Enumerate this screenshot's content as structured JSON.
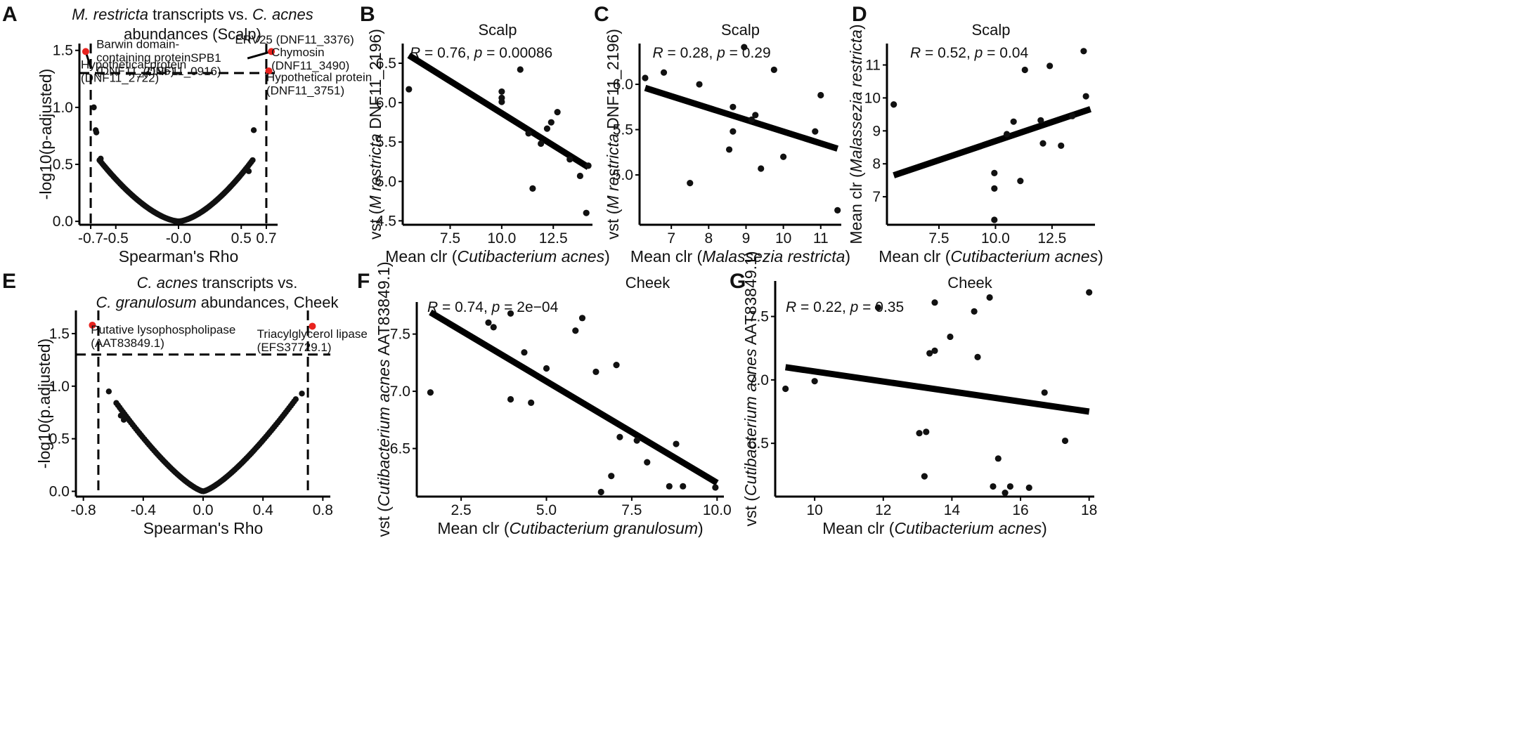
{
  "colors": {
    "point": "#111111",
    "highlight": "#e8221e",
    "line": "#000000",
    "axis": "#000000"
  },
  "chart_data": [
    {
      "id": "A",
      "type": "scatter",
      "letter": "A",
      "title_lines": [
        [
          {
            "t": "M. restricta",
            "i": true
          },
          {
            "t": " transcripts vs. ",
            "i": false
          },
          {
            "t": "C. acnes",
            "i": true
          }
        ],
        [
          {
            "t": "abundances (Scalp)",
            "i": false
          }
        ]
      ],
      "xlabel": [
        {
          "t": "Spearman's Rho",
          "i": false
        }
      ],
      "ylabel": [
        {
          "t": "-log10(p-adjusted)",
          "i": false
        }
      ],
      "xlim": [
        -0.79,
        0.79
      ],
      "ylim": [
        -0.03,
        1.56
      ],
      "xticks": [
        -0.7,
        -0.5,
        0.0,
        0.5,
        0.7
      ],
      "xtick_labels": [
        "-0.7",
        "-0.5",
        "-0.0",
        "0.5",
        "0.7"
      ],
      "yticks": [
        0.0,
        0.5,
        1.0,
        1.5
      ],
      "ytick_labels": [
        "0.0",
        "0.5",
        "1.0",
        "1.5"
      ],
      "hline": 1.301,
      "vlines": [
        -0.7,
        0.7
      ],
      "curve": {
        "fn": "volcano",
        "x_start": -0.63,
        "x_end": 0.6,
        "step": 0.011,
        "ymax": 0.55,
        "power": 1.6,
        "left_max_x": -0.64,
        "right_max_x": 0.6
      },
      "extra_points": [
        [
          -0.675,
          1.0
        ],
        [
          -0.66,
          0.8
        ],
        [
          -0.655,
          0.78
        ],
        [
          -0.62,
          0.55
        ],
        [
          0.55,
          0.45
        ],
        [
          0.56,
          0.44
        ],
        [
          0.6,
          0.8
        ]
      ],
      "highlight_points": [
        [
          -0.74,
          1.49
        ],
        [
          0.74,
          1.49
        ],
        [
          0.72,
          1.32
        ]
      ],
      "annotations": [
        {
          "lines": [
            "Barwin domain-",
            "containing protein",
            "(DNF11_2196)"
          ],
          "x": -0.7,
          "y": 1.52,
          "anchor": "start",
          "dx": 8
        },
        {
          "lines": [
            "Hypothetical protein",
            "(DNF11_2722)"
          ],
          "x": -0.79,
          "y": 1.34,
          "anchor": "start",
          "dx": 2
        },
        {
          "lines": [
            "SPB1",
            "(DNF11_0916)"
          ],
          "x": 0.34,
          "y": 1.4,
          "anchor": "end",
          "dx": 0
        },
        {
          "lines": [
            "ERV25 (DNF11_3376)"
          ],
          "x": 0.45,
          "y": 1.56,
          "anchor": "start",
          "dx": 0
        },
        {
          "lines": [
            "Chymosin",
            "(DNF11_3490)"
          ],
          "x": 0.74,
          "y": 1.45,
          "anchor": "start",
          "dx": 0
        },
        {
          "lines": [
            "Hypothetical protein",
            "(DNF11_3751)"
          ],
          "x": 0.7,
          "y": 1.23,
          "anchor": "start",
          "dx": 0
        }
      ],
      "leader_lines": [
        [
          [
            -0.74,
            1.49
          ],
          [
            -0.7,
            1.35
          ]
        ],
        [
          [
            0.74,
            1.49
          ],
          [
            0.55,
            1.43
          ]
        ]
      ]
    },
    {
      "id": "B",
      "type": "scatter",
      "letter": "B",
      "subtitle": "Scalp",
      "stat_R": "0.76,",
      "stat_p": "p = 0.00086",
      "xlabel": [
        {
          "t": "Mean clr (",
          "i": false
        },
        {
          "t": "Cutibacterium acnes",
          "i": true
        },
        {
          "t": ")",
          "i": false
        }
      ],
      "ylabel": [
        {
          "t": "vst (",
          "i": false
        },
        {
          "t": "M restricta",
          "i": true
        },
        {
          "t": " DNF11_2196)",
          "i": false
        }
      ],
      "xlim": [
        5.2,
        14.4
      ],
      "ylim": [
        4.45,
        6.75
      ],
      "xticks": [
        7.5,
        10.0,
        12.5
      ],
      "xtick_labels": [
        "7.5",
        "10.0",
        "12.5"
      ],
      "yticks": [
        4.5,
        5.0,
        5.5,
        6.0,
        6.5
      ],
      "ytick_labels": [
        "4.5",
        "5.0",
        "5.5",
        "6.0",
        "6.5"
      ],
      "points": [
        [
          5.5,
          6.17
        ],
        [
          10.0,
          6.14
        ],
        [
          10.0,
          6.06
        ],
        [
          10.0,
          6.01
        ],
        [
          10.9,
          6.42
        ],
        [
          11.3,
          5.61
        ],
        [
          11.9,
          5.48
        ],
        [
          11.5,
          4.91
        ],
        [
          12.2,
          5.67
        ],
        [
          12.4,
          5.75
        ],
        [
          12.7,
          5.88
        ],
        [
          13.3,
          5.28
        ],
        [
          13.8,
          5.07
        ],
        [
          14.1,
          4.6
        ],
        [
          14.2,
          5.2
        ]
      ],
      "fit": [
        [
          5.5,
          6.6
        ],
        [
          14.2,
          5.18
        ]
      ]
    },
    {
      "id": "C",
      "type": "scatter",
      "letter": "C",
      "subtitle": "Scalp",
      "stat_R": "0.28,",
      "stat_p": "p = 0.29",
      "xlabel": [
        {
          "t": "Mean clr (",
          "i": false
        },
        {
          "t": "Malassezia restricta",
          "i": true
        },
        {
          "t": ")",
          "i": false
        }
      ],
      "ylabel": [
        {
          "t": "vst (",
          "i": false
        },
        {
          "t": "M restricta",
          "i": true
        },
        {
          "t": " DNF11_2196)",
          "i": false
        }
      ],
      "xlim": [
        6.15,
        11.55
      ],
      "ylim": [
        4.45,
        6.45
      ],
      "xticks": [
        7,
        8,
        9,
        10,
        11
      ],
      "xtick_labels": [
        "7",
        "8",
        "9",
        "10",
        "11"
      ],
      "yticks": [
        5.0,
        5.5,
        6.0
      ],
      "ytick_labels": [
        "5.0",
        "5.5",
        "6.0"
      ],
      "points": [
        [
          6.3,
          6.07
        ],
        [
          6.8,
          6.13
        ],
        [
          7.5,
          4.91
        ],
        [
          7.75,
          6.0
        ],
        [
          8.55,
          5.28
        ],
        [
          8.65,
          5.75
        ],
        [
          8.65,
          5.48
        ],
        [
          8.95,
          6.41
        ],
        [
          9.15,
          5.61
        ],
        [
          9.25,
          5.66
        ],
        [
          9.4,
          5.07
        ],
        [
          9.75,
          6.16
        ],
        [
          10.0,
          5.2
        ],
        [
          10.85,
          5.48
        ],
        [
          11.0,
          5.88
        ],
        [
          11.45,
          4.61
        ]
      ],
      "fit": [
        [
          6.3,
          5.96
        ],
        [
          11.45,
          5.29
        ]
      ]
    },
    {
      "id": "D",
      "type": "scatter",
      "letter": "D",
      "subtitle": "Scalp",
      "stat_R": "0.52,",
      "stat_p": "p = 0.04",
      "xlabel": [
        {
          "t": "Mean clr (",
          "i": false
        },
        {
          "t": "Cutibacterium acnes",
          "i": true
        },
        {
          "t": ")",
          "i": false
        }
      ],
      "ylabel": [
        {
          "t": "Mean clr (",
          "i": false
        },
        {
          "t": "Malassezia restricta",
          "i": true
        },
        {
          "t": ")",
          "i": false
        }
      ],
      "xlim": [
        5.2,
        14.4
      ],
      "ylim": [
        6.15,
        11.65
      ],
      "xticks": [
        7.5,
        10.0,
        12.5
      ],
      "xtick_labels": [
        "7.5",
        "10.0",
        "12.5"
      ],
      "yticks": [
        7,
        8,
        9,
        10,
        11
      ],
      "ytick_labels": [
        "7",
        "8",
        "9",
        "10",
        "11"
      ],
      "points": [
        [
          5.5,
          9.8
        ],
        [
          9.95,
          7.72
        ],
        [
          9.95,
          7.25
        ],
        [
          9.95,
          6.3
        ],
        [
          10.5,
          8.9
        ],
        [
          10.8,
          9.28
        ],
        [
          11.1,
          7.48
        ],
        [
          11.3,
          10.85
        ],
        [
          12.0,
          9.32
        ],
        [
          12.1,
          8.62
        ],
        [
          12.4,
          10.97
        ],
        [
          12.9,
          8.55
        ],
        [
          13.4,
          9.45
        ],
        [
          13.9,
          11.42
        ],
        [
          14.0,
          10.05
        ]
      ],
      "fit": [
        [
          5.5,
          7.65
        ],
        [
          14.2,
          9.66
        ]
      ]
    },
    {
      "id": "E",
      "type": "scatter",
      "letter": "E",
      "title_lines": [
        [
          {
            "t": "C. acnes",
            "i": true
          },
          {
            "t": " transcripts vs.",
            "i": false
          }
        ],
        [
          {
            "t": "C. granulosum",
            "i": true
          },
          {
            "t": " abundances, Cheek",
            "i": false
          }
        ]
      ],
      "xlabel": [
        {
          "t": "Spearman's Rho",
          "i": false
        }
      ],
      "ylabel": [
        {
          "t": "-log10(p.adjusted)",
          "i": false
        }
      ],
      "xlim": [
        -0.85,
        0.85
      ],
      "ylim": [
        -0.05,
        1.72
      ],
      "xticks": [
        -0.8,
        -0.4,
        0.0,
        0.4,
        0.8
      ],
      "xtick_labels": [
        "-0.8",
        "-0.4",
        "0.0",
        "0.4",
        "0.8"
      ],
      "yticks": [
        0.0,
        0.5,
        1.0,
        1.5
      ],
      "ytick_labels": [
        "0.0",
        "0.5",
        "1.0",
        "1.5"
      ],
      "hline": 1.301,
      "vlines": [
        -0.7,
        0.7
      ],
      "curve": {
        "fn": "volcano",
        "x_start": -0.58,
        "x_end": 0.62,
        "step": 0.011,
        "ymax": 0.84,
        "power": 1.35,
        "left_max_x": -0.58,
        "right_max_x": 0.6
      },
      "extra_points": [
        [
          -0.63,
          0.95
        ],
        [
          0.66,
          0.93
        ],
        [
          -0.55,
          0.72
        ],
        [
          -0.53,
          0.68
        ]
      ],
      "highlight_points": [
        [
          -0.74,
          1.58
        ],
        [
          0.73,
          1.57
        ]
      ],
      "annotations": [
        {
          "lines": [
            "Putative lysophospholipase",
            "(AAT83849.1)"
          ],
          "x": -0.75,
          "y": 1.5,
          "anchor": "start",
          "dx": 0
        },
        {
          "lines": [
            "Triacylglycerol lipase",
            "(EFS37729.1)"
          ],
          "x": 0.36,
          "y": 1.46,
          "anchor": "start",
          "dx": 0
        }
      ],
      "leader_lines": []
    },
    {
      "id": "F",
      "type": "scatter",
      "letter": "F",
      "subtitle": "Cheek",
      "stat_R": "0.74,",
      "stat_p": "p = 2e−04",
      "xlabel": [
        {
          "t": "Mean clr (",
          "i": false
        },
        {
          "t": "Cutibacterium granulosum",
          "i": true
        },
        {
          "t": ")",
          "i": false
        }
      ],
      "ylabel": [
        {
          "t": "vst (",
          "i": false
        },
        {
          "t": "Cutibacterium acnes",
          "i": true
        },
        {
          "t": " AAT83849.1)",
          "i": false
        }
      ],
      "xlim": [
        1.2,
        10.2
      ],
      "ylim": [
        6.08,
        7.78
      ],
      "xticks": [
        2.5,
        5.0,
        7.5,
        10.0
      ],
      "xtick_labels": [
        "2.5",
        "5.0",
        "7.5",
        "10.0"
      ],
      "yticks": [
        6.5,
        7.0,
        7.5
      ],
      "ytick_labels": [
        "6.5",
        "7.0",
        "7.5"
      ],
      "points": [
        [
          1.6,
          6.99
        ],
        [
          3.3,
          7.6
        ],
        [
          3.45,
          7.56
        ],
        [
          3.95,
          7.68
        ],
        [
          3.95,
          6.93
        ],
        [
          4.35,
          7.34
        ],
        [
          4.55,
          6.9
        ],
        [
          5.0,
          7.2
        ],
        [
          5.85,
          7.53
        ],
        [
          6.05,
          7.64
        ],
        [
          6.45,
          7.17
        ],
        [
          6.6,
          6.12
        ],
        [
          7.05,
          7.23
        ],
        [
          7.15,
          6.6
        ],
        [
          6.9,
          6.26
        ],
        [
          7.65,
          6.57
        ],
        [
          7.95,
          6.38
        ],
        [
          8.6,
          6.17
        ],
        [
          8.8,
          6.54
        ],
        [
          9.0,
          6.17
        ],
        [
          9.95,
          6.16
        ]
      ],
      "fit": [
        [
          1.6,
          7.69
        ],
        [
          10.0,
          6.2
        ]
      ]
    },
    {
      "id": "G",
      "type": "scatter",
      "letter": "G",
      "subtitle": "Cheek",
      "stat_R": "0.22,",
      "stat_p": "p = 0.35",
      "xlabel": [
        {
          "t": "Mean clr (",
          "i": false
        },
        {
          "t": "Cutibacterium acnes",
          "i": true
        },
        {
          "t": ")",
          "i": false
        }
      ],
      "ylabel": [
        {
          "t": "vst (",
          "i": false
        },
        {
          "t": "Cutibacterium acnes",
          "i": true
        },
        {
          "t": " AAT83849.1)",
          "i": false
        }
      ],
      "xlim": [
        8.85,
        18.15
      ],
      "ylim": [
        6.08,
        7.78
      ],
      "xticks": [
        10,
        12,
        14,
        16,
        18
      ],
      "xtick_labels": [
        "10",
        "12",
        "14",
        "16",
        "18"
      ],
      "yticks": [
        6.5,
        7.0,
        7.5
      ],
      "ytick_labels": [
        "6.5",
        "7.0",
        "7.5"
      ],
      "points": [
        [
          9.15,
          6.93
        ],
        [
          10.0,
          6.99
        ],
        [
          11.85,
          7.57
        ],
        [
          13.05,
          6.58
        ],
        [
          13.25,
          6.59
        ],
        [
          13.2,
          6.24
        ],
        [
          13.35,
          7.21
        ],
        [
          13.5,
          7.23
        ],
        [
          13.5,
          7.61
        ],
        [
          13.95,
          7.34
        ],
        [
          14.65,
          7.54
        ],
        [
          14.75,
          7.18
        ],
        [
          15.1,
          7.65
        ],
        [
          15.2,
          6.16
        ],
        [
          15.35,
          6.38
        ],
        [
          15.55,
          6.11
        ],
        [
          15.7,
          6.16
        ],
        [
          16.25,
          6.15
        ],
        [
          16.7,
          6.9
        ],
        [
          17.3,
          6.52
        ],
        [
          18.0,
          7.69
        ]
      ],
      "fit": [
        [
          9.15,
          7.1
        ],
        [
          18.0,
          6.75
        ]
      ]
    }
  ]
}
